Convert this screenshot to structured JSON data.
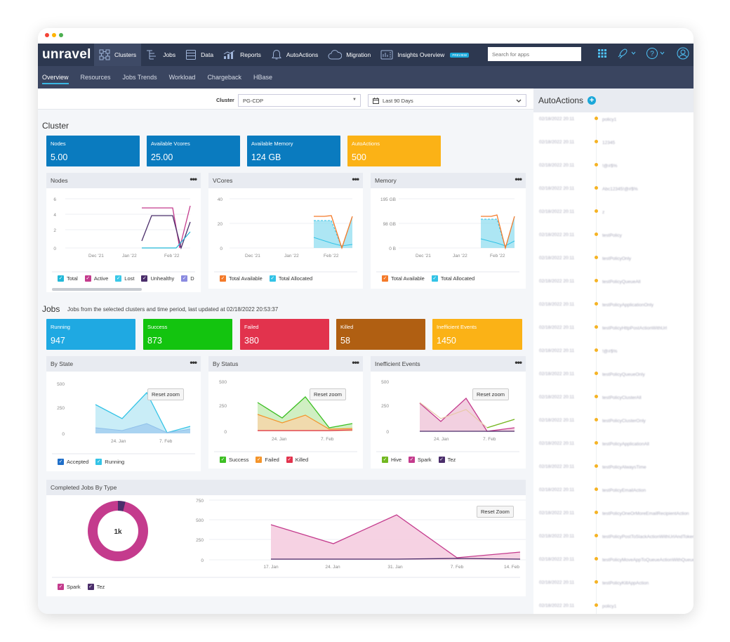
{
  "window": {
    "dots": [
      "#f44336",
      "#ffb300",
      "#4caf50"
    ]
  },
  "nav": {
    "logo": "unravel",
    "items": [
      {
        "label": "Clusters",
        "icon": "clusters-icon",
        "active": true
      },
      {
        "label": "Jobs",
        "icon": "jobs-icon"
      },
      {
        "label": "Data",
        "icon": "data-icon"
      },
      {
        "label": "Reports",
        "icon": "reports-icon"
      },
      {
        "label": "AutoActions",
        "icon": "bell-icon"
      },
      {
        "label": "Migration",
        "icon": "cloud-icon"
      },
      {
        "label": "Insights Overview",
        "icon": "insights-icon",
        "badge": "PREVIEW"
      }
    ],
    "search_placeholder": "Search for apps"
  },
  "subnav": [
    "Overview",
    "Resources",
    "Jobs Trends",
    "Workload",
    "Chargeback",
    "HBase"
  ],
  "filters": {
    "cluster_label": "Cluster",
    "cluster_value": "PG-CDP",
    "date_range": "Last 90 Days"
  },
  "cluster_section": {
    "title": "Cluster",
    "kpis": [
      {
        "label": "Nodes",
        "value": "5.00",
        "color": "#0a7bbf"
      },
      {
        "label": "Available Vcores",
        "value": "25.00",
        "color": "#0a7bbf"
      },
      {
        "label": "Available Memory",
        "value": "124 GB",
        "color": "#0a7bbf"
      },
      {
        "label": "AutoActions",
        "value": "500",
        "color": "#fbb216"
      }
    ]
  },
  "jobs_section": {
    "title": "Jobs",
    "subtitle": "Jobs from the selected clusters and time period, last updated at 02/18/2022 20:53:37",
    "kpis": [
      {
        "label": "Running",
        "value": "947",
        "color": "#1fa9e2"
      },
      {
        "label": "Success",
        "value": "873",
        "color": "#13c40f"
      },
      {
        "label": "Failed",
        "value": "380",
        "color": "#e2334d"
      },
      {
        "label": "Killed",
        "value": "58",
        "color": "#b05f12"
      },
      {
        "label": "Inefficient Events",
        "value": "1450",
        "color": "#fbb216"
      }
    ]
  },
  "cards": {
    "nodes": {
      "title": "Nodes",
      "legend": [
        {
          "label": "Total",
          "color": "#22b8d8"
        },
        {
          "label": "Active",
          "color": "#c43b8d"
        },
        {
          "label": "Lost",
          "color": "#3ac8e8"
        },
        {
          "label": "Unhealthy",
          "color": "#4b2e6b"
        },
        {
          "label": "D",
          "color": "#8a8ae0"
        }
      ]
    },
    "vcores": {
      "title": "VCores",
      "legend": [
        {
          "label": "Total Available",
          "color": "#f47a2a"
        },
        {
          "label": "Total Allocated",
          "color": "#33c3e6"
        }
      ]
    },
    "memory": {
      "title": "Memory",
      "legend": [
        {
          "label": "Total Available",
          "color": "#f47a2a"
        },
        {
          "label": "Total Allocated",
          "color": "#33c3e6"
        }
      ]
    },
    "by_state": {
      "title": "By State",
      "reset": "Reset zoom",
      "legend": [
        {
          "label": "Accepted",
          "color": "#1f6fc9"
        },
        {
          "label": "Running",
          "color": "#33c3e6"
        }
      ]
    },
    "by_status": {
      "title": "By Status",
      "reset": "Reset zoom",
      "legend": [
        {
          "label": "Success",
          "color": "#3dbf24"
        },
        {
          "label": "Failed",
          "color": "#f4942a"
        },
        {
          "label": "Killed",
          "color": "#e2334d"
        }
      ]
    },
    "inefficient": {
      "title": "Inefficient Events",
      "reset": "Reset zoom",
      "legend": [
        {
          "label": "Hive",
          "color": "#72b820"
        },
        {
          "label": "Spark",
          "color": "#c43b8d"
        },
        {
          "label": "Tez",
          "color": "#4b2e6b"
        }
      ]
    },
    "completed": {
      "title": "Completed Jobs By Type",
      "reset": "Reset Zoom",
      "donut_label": "1k",
      "legend": [
        {
          "label": "Spark",
          "color": "#c43b8d"
        },
        {
          "label": "Tez",
          "color": "#4b2e6b"
        }
      ]
    }
  },
  "chart_data": [
    {
      "type": "line",
      "title": "Nodes",
      "x_ticks": [
        "Dec '21",
        "Jan '22",
        "Feb '22"
      ],
      "y_ticks": [
        "0",
        "2",
        "4",
        "6"
      ],
      "ylim": [
        0,
        6
      ],
      "series": [
        {
          "name": "Active",
          "values": [
            5,
            5,
            0,
            5
          ]
        },
        {
          "name": "Unhealthy",
          "values": [
            1,
            4,
            4,
            0,
            4
          ]
        },
        {
          "name": "Total",
          "values": [
            0,
            0,
            2
          ]
        }
      ]
    },
    {
      "type": "area",
      "title": "VCores",
      "x_ticks": [
        "Dec '21",
        "Jan '22",
        "Feb '22"
      ],
      "y_ticks": [
        "0",
        "20",
        "40"
      ],
      "ylim": [
        0,
        40
      ],
      "series": [
        {
          "name": "Total Available",
          "values": [
            25,
            25,
            26,
            0,
            25
          ]
        },
        {
          "name": "Total Allocated",
          "values": [
            21,
            21,
            8,
            0,
            25
          ]
        }
      ]
    },
    {
      "type": "area",
      "title": "Memory",
      "x_ticks": [
        "Dec '21",
        "Jan '22",
        "Feb '22"
      ],
      "y_ticks": [
        "0 B",
        "98 GB",
        "195 GB"
      ],
      "series": [
        {
          "name": "Total Available",
          "values": [
            124,
            124,
            124,
            0,
            124
          ]
        },
        {
          "name": "Total Allocated",
          "values": [
            110,
            110,
            30,
            0,
            118
          ]
        }
      ]
    },
    {
      "type": "area",
      "title": "By State",
      "x_ticks": [
        "24. Jan",
        "7. Feb"
      ],
      "y_ticks": [
        "0",
        "250",
        "500"
      ],
      "ylim": [
        0,
        500
      ],
      "series": [
        {
          "name": "Running",
          "values": [
            340,
            200,
            470,
            10,
            100
          ]
        },
        {
          "name": "Accepted",
          "values": [
            60,
            40,
            100,
            10,
            50
          ]
        }
      ]
    },
    {
      "type": "area",
      "title": "By Status",
      "x_ticks": [
        "24. Jan",
        "7. Feb"
      ],
      "y_ticks": [
        "0",
        "250",
        "500"
      ],
      "ylim": [
        0,
        500
      ],
      "series": [
        {
          "name": "Success",
          "values": [
            300,
            150,
            370,
            30,
            80
          ]
        },
        {
          "name": "Failed",
          "values": [
            180,
            90,
            170,
            20,
            30
          ]
        },
        {
          "name": "Killed",
          "values": [
            10,
            10,
            10,
            10,
            10
          ]
        }
      ]
    },
    {
      "type": "area",
      "title": "Inefficient Events",
      "x_ticks": [
        "24. Jan",
        "7. Feb"
      ],
      "y_ticks": [
        "0",
        "250",
        "500"
      ],
      "ylim": [
        0,
        500
      ],
      "series": [
        {
          "name": "Spark",
          "values": [
            290,
            100,
            360,
            20,
            60
          ]
        },
        {
          "name": "Hive",
          "values": [
            300,
            130,
            240,
            40,
            120
          ]
        },
        {
          "name": "Tez",
          "values": [
            0,
            0,
            0,
            0,
            0
          ]
        }
      ]
    },
    {
      "type": "pie",
      "title": "Completed Jobs By Type",
      "slices": [
        {
          "name": "Spark",
          "value": 96
        },
        {
          "name": "Tez",
          "value": 4
        }
      ]
    },
    {
      "type": "area",
      "title": "Completed Jobs By Type",
      "x_ticks": [
        "17. Jan",
        "24. Jan",
        "31. Jan",
        "7. Feb",
        "14. Feb"
      ],
      "y_ticks": [
        "0",
        "250",
        "500",
        "750"
      ],
      "ylim": [
        0,
        750
      ],
      "series": [
        {
          "name": "Spark",
          "values": [
            420,
            190,
            560,
            10,
            70
          ]
        },
        {
          "name": "Tez",
          "values": [
            10,
            10,
            10,
            10,
            10
          ]
        }
      ]
    }
  ],
  "autoactions": {
    "title": "AutoActions",
    "items": [
      {
        "date": "02/18/2022 20:11",
        "name": "policy1"
      },
      {
        "date": "02/18/2022 20:11",
        "name": "12345"
      },
      {
        "date": "02/18/2022 20:11",
        "name": "!@#$%"
      },
      {
        "date": "02/18/2022 20:11",
        "name": "Abc12345!@#$%"
      },
      {
        "date": "02/18/2022 20:11",
        "name": "z"
      },
      {
        "date": "02/18/2022 20:11",
        "name": "testPolicy"
      },
      {
        "date": "02/18/2022 20:11",
        "name": "testPolicyOnly"
      },
      {
        "date": "02/18/2022 20:11",
        "name": "testPolicyQueueAll"
      },
      {
        "date": "02/18/2022 20:11",
        "name": "testPolicyApplicationOnly"
      },
      {
        "date": "02/18/2022 20:11",
        "name": "testPolicyHttpPostActionWithUrl"
      },
      {
        "date": "02/18/2022 20:11",
        "name": "!@#$%"
      },
      {
        "date": "02/18/2022 20:11",
        "name": "testPolicyQueueOnly"
      },
      {
        "date": "02/18/2022 20:11",
        "name": "testPolicyClusterAll"
      },
      {
        "date": "02/18/2022 20:11",
        "name": "testPolicyClusterOnly"
      },
      {
        "date": "02/18/2022 20:11",
        "name": "testPolicyApplicationAll"
      },
      {
        "date": "02/18/2022 20:11",
        "name": "testPolicyAlwaysTime"
      },
      {
        "date": "02/18/2022 20:11",
        "name": "testPolicyEmailAction"
      },
      {
        "date": "02/18/2022 20:11",
        "name": "testPolicyOneOrMoreEmailRecipientAction"
      },
      {
        "date": "02/18/2022 20:11",
        "name": "testPolicyPostToSlackActionWithUrlAndToken"
      },
      {
        "date": "02/18/2022 20:11",
        "name": "testPolicyMoveAppToQueueActionWithQueue"
      },
      {
        "date": "02/18/2022 20:11",
        "name": "testPolicyKillAppAction"
      },
      {
        "date": "02/18/2022 20:11",
        "name": "policy1"
      }
    ]
  }
}
